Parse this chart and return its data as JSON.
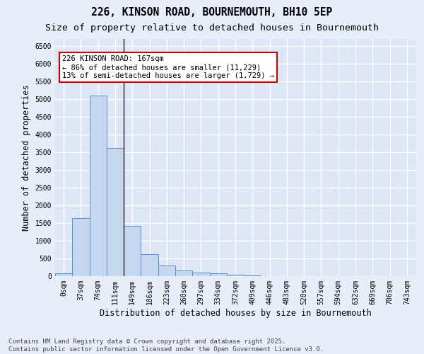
{
  "title_line1": "226, KINSON ROAD, BOURNEMOUTH, BH10 5EP",
  "title_line2": "Size of property relative to detached houses in Bournemouth",
  "xlabel": "Distribution of detached houses by size in Bournemouth",
  "ylabel": "Number of detached properties",
  "categories": [
    "0sqm",
    "37sqm",
    "74sqm",
    "111sqm",
    "149sqm",
    "186sqm",
    "223sqm",
    "260sqm",
    "297sqm",
    "334sqm",
    "372sqm",
    "409sqm",
    "446sqm",
    "483sqm",
    "520sqm",
    "557sqm",
    "594sqm",
    "632sqm",
    "669sqm",
    "706sqm",
    "743sqm"
  ],
  "bar_values": [
    75,
    1650,
    5100,
    3630,
    1430,
    620,
    310,
    155,
    105,
    80,
    50,
    30,
    0,
    0,
    0,
    0,
    0,
    0,
    0,
    0,
    0
  ],
  "bar_color": "#c5d8f0",
  "bar_edge_color": "#5a8fc2",
  "annotation_box_text": "226 KINSON ROAD: 167sqm\n← 86% of detached houses are smaller (11,229)\n13% of semi-detached houses are larger (1,729) →",
  "vline_x": 3.5,
  "vline_color": "#222222",
  "box_color": "#cc0000",
  "ylim": [
    0,
    6700
  ],
  "yticks": [
    0,
    500,
    1000,
    1500,
    2000,
    2500,
    3000,
    3500,
    4000,
    4500,
    5000,
    5500,
    6000,
    6500
  ],
  "plot_bg_color": "#dce6f5",
  "fig_bg_color": "#e8eef8",
  "grid_color": "#ffffff",
  "footer_line1": "Contains HM Land Registry data © Crown copyright and database right 2025.",
  "footer_line2": "Contains public sector information licensed under the Open Government Licence v3.0.",
  "title_fontsize": 10.5,
  "subtitle_fontsize": 9.5,
  "axis_label_fontsize": 8.5,
  "tick_fontsize": 7,
  "annotation_fontsize": 7.5,
  "footer_fontsize": 6.5
}
